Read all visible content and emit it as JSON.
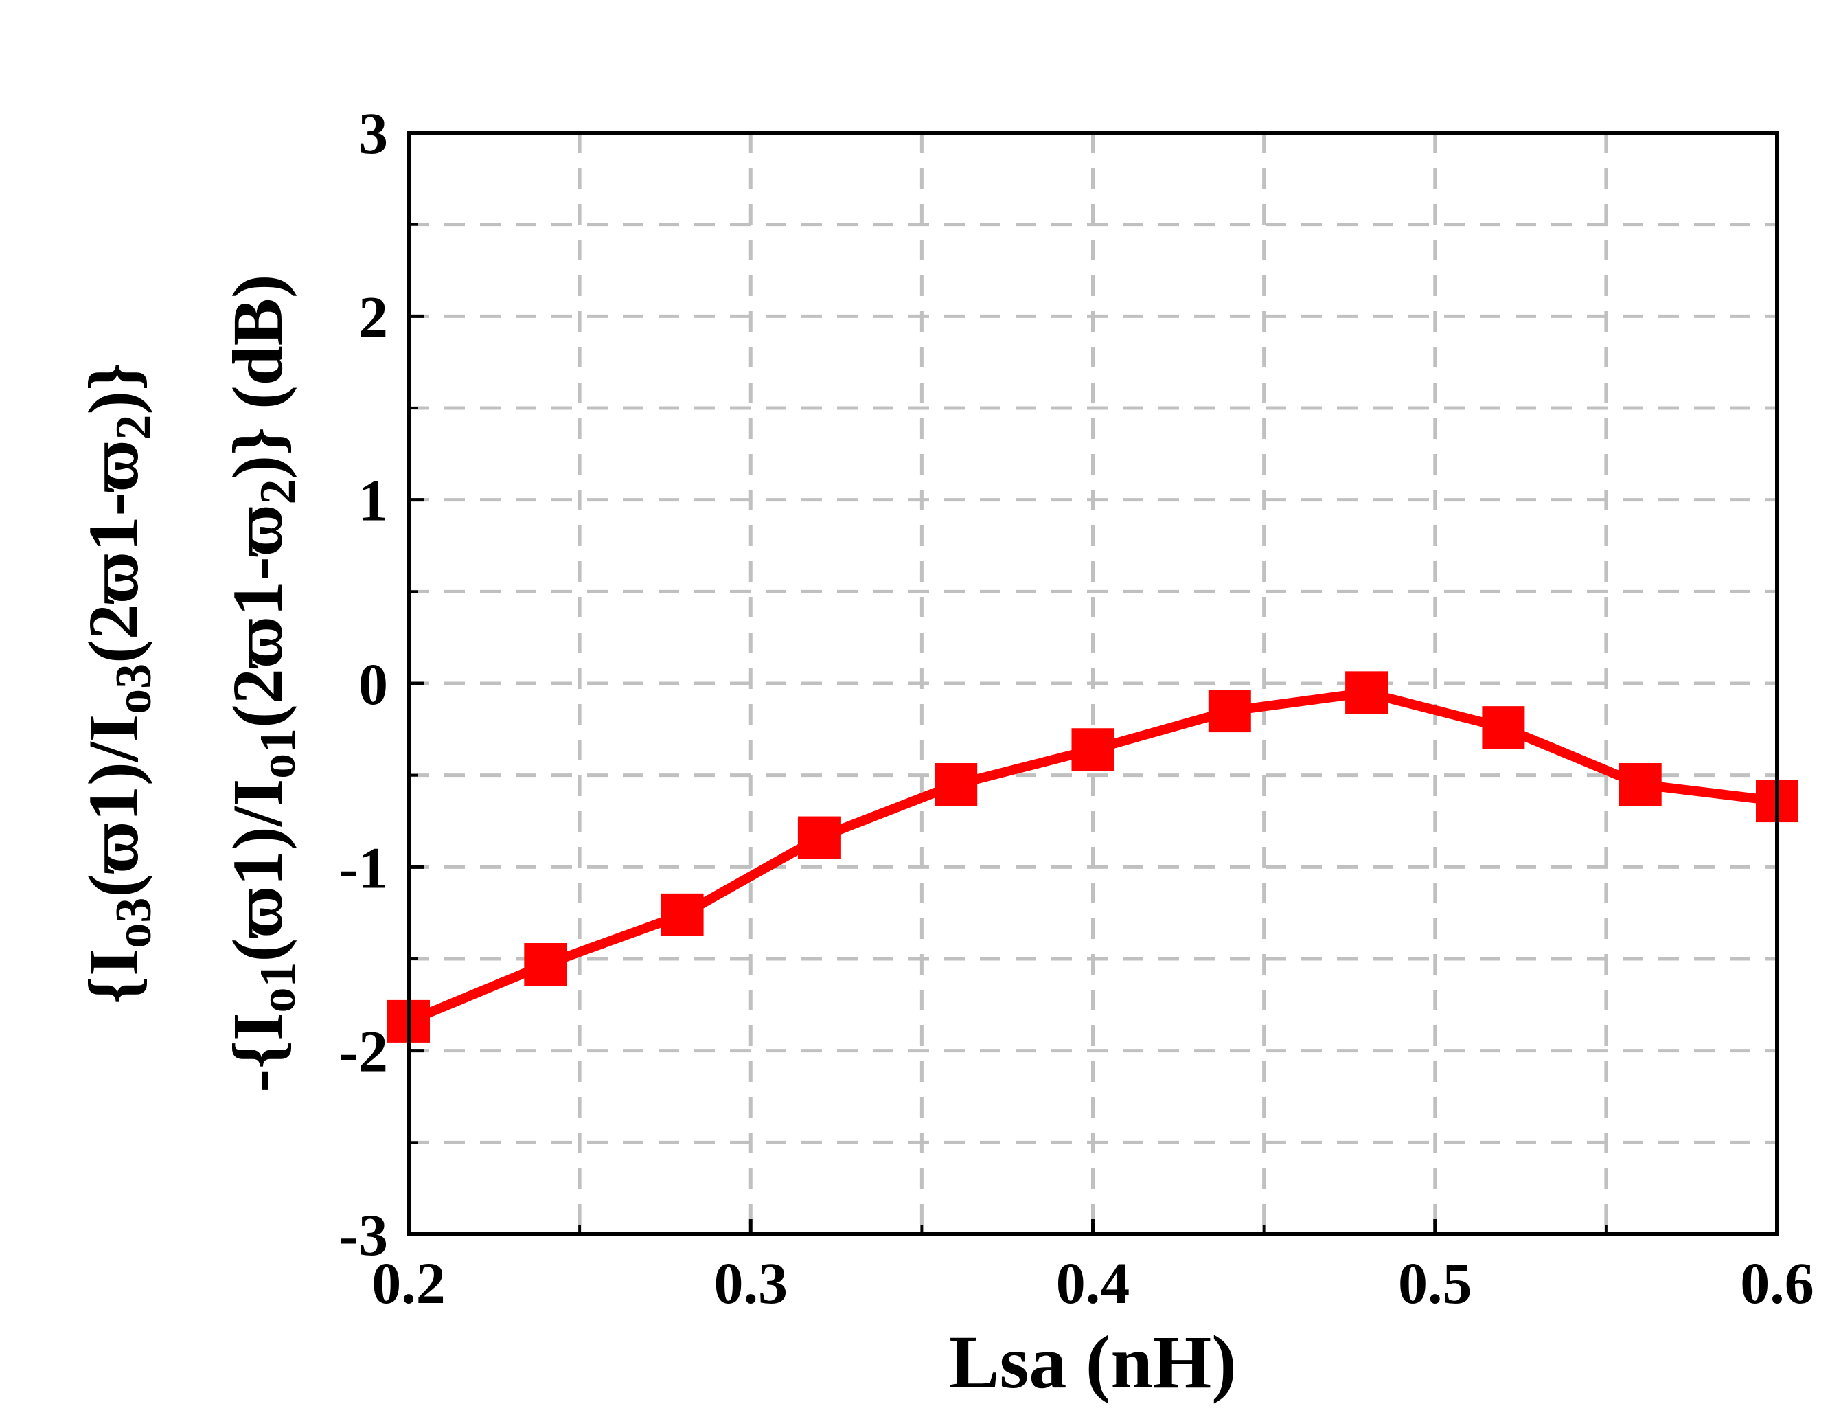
{
  "chart_data": {
    "type": "line",
    "xlabel": "Lsa (nH)",
    "ylabel_lines": [
      {
        "parts": [
          {
            "t": "{I",
            "sub": false
          },
          {
            "t": "o3",
            "sub": true
          },
          {
            "t": "(ϖ1)/I",
            "sub": false
          },
          {
            "t": "o3",
            "sub": true
          },
          {
            "t": "(2ϖ1-ϖ",
            "sub": false
          },
          {
            "t": "2",
            "sub": true
          },
          {
            "t": ")}",
            "sub": false
          }
        ]
      },
      {
        "parts": [
          {
            "t": "-{I",
            "sub": false
          },
          {
            "t": "o1",
            "sub": true
          },
          {
            "t": "(ϖ1)/I",
            "sub": false
          },
          {
            "t": "o1",
            "sub": true
          },
          {
            "t": "(2ϖ1-ϖ",
            "sub": false
          },
          {
            "t": "2",
            "sub": true
          },
          {
            "t": ")} (dB)",
            "sub": false
          }
        ]
      }
    ],
    "xlim": [
      0.2,
      0.6
    ],
    "ylim": [
      -3,
      3
    ],
    "xticks": [
      0.2,
      0.3,
      0.4,
      0.5,
      0.6
    ],
    "xtick_labels": [
      "0.2",
      "0.3",
      "0.4",
      "0.5",
      "0.6"
    ],
    "yticks": [
      -3,
      -2,
      -1,
      0,
      1,
      2,
      3
    ],
    "ytick_labels": [
      "-3",
      "-2",
      "-1",
      "0",
      "1",
      "2",
      "3"
    ],
    "grid": true,
    "series": [
      {
        "color": "#ff0000",
        "marker": "square",
        "x": [
          0.2,
          0.24,
          0.28,
          0.32,
          0.36,
          0.4,
          0.44,
          0.48,
          0.52,
          0.56,
          0.6
        ],
        "y": [
          -1.84,
          -1.53,
          -1.26,
          -0.84,
          -0.55,
          -0.36,
          -0.15,
          -0.05,
          -0.24,
          -0.55,
          -0.64
        ]
      }
    ]
  }
}
